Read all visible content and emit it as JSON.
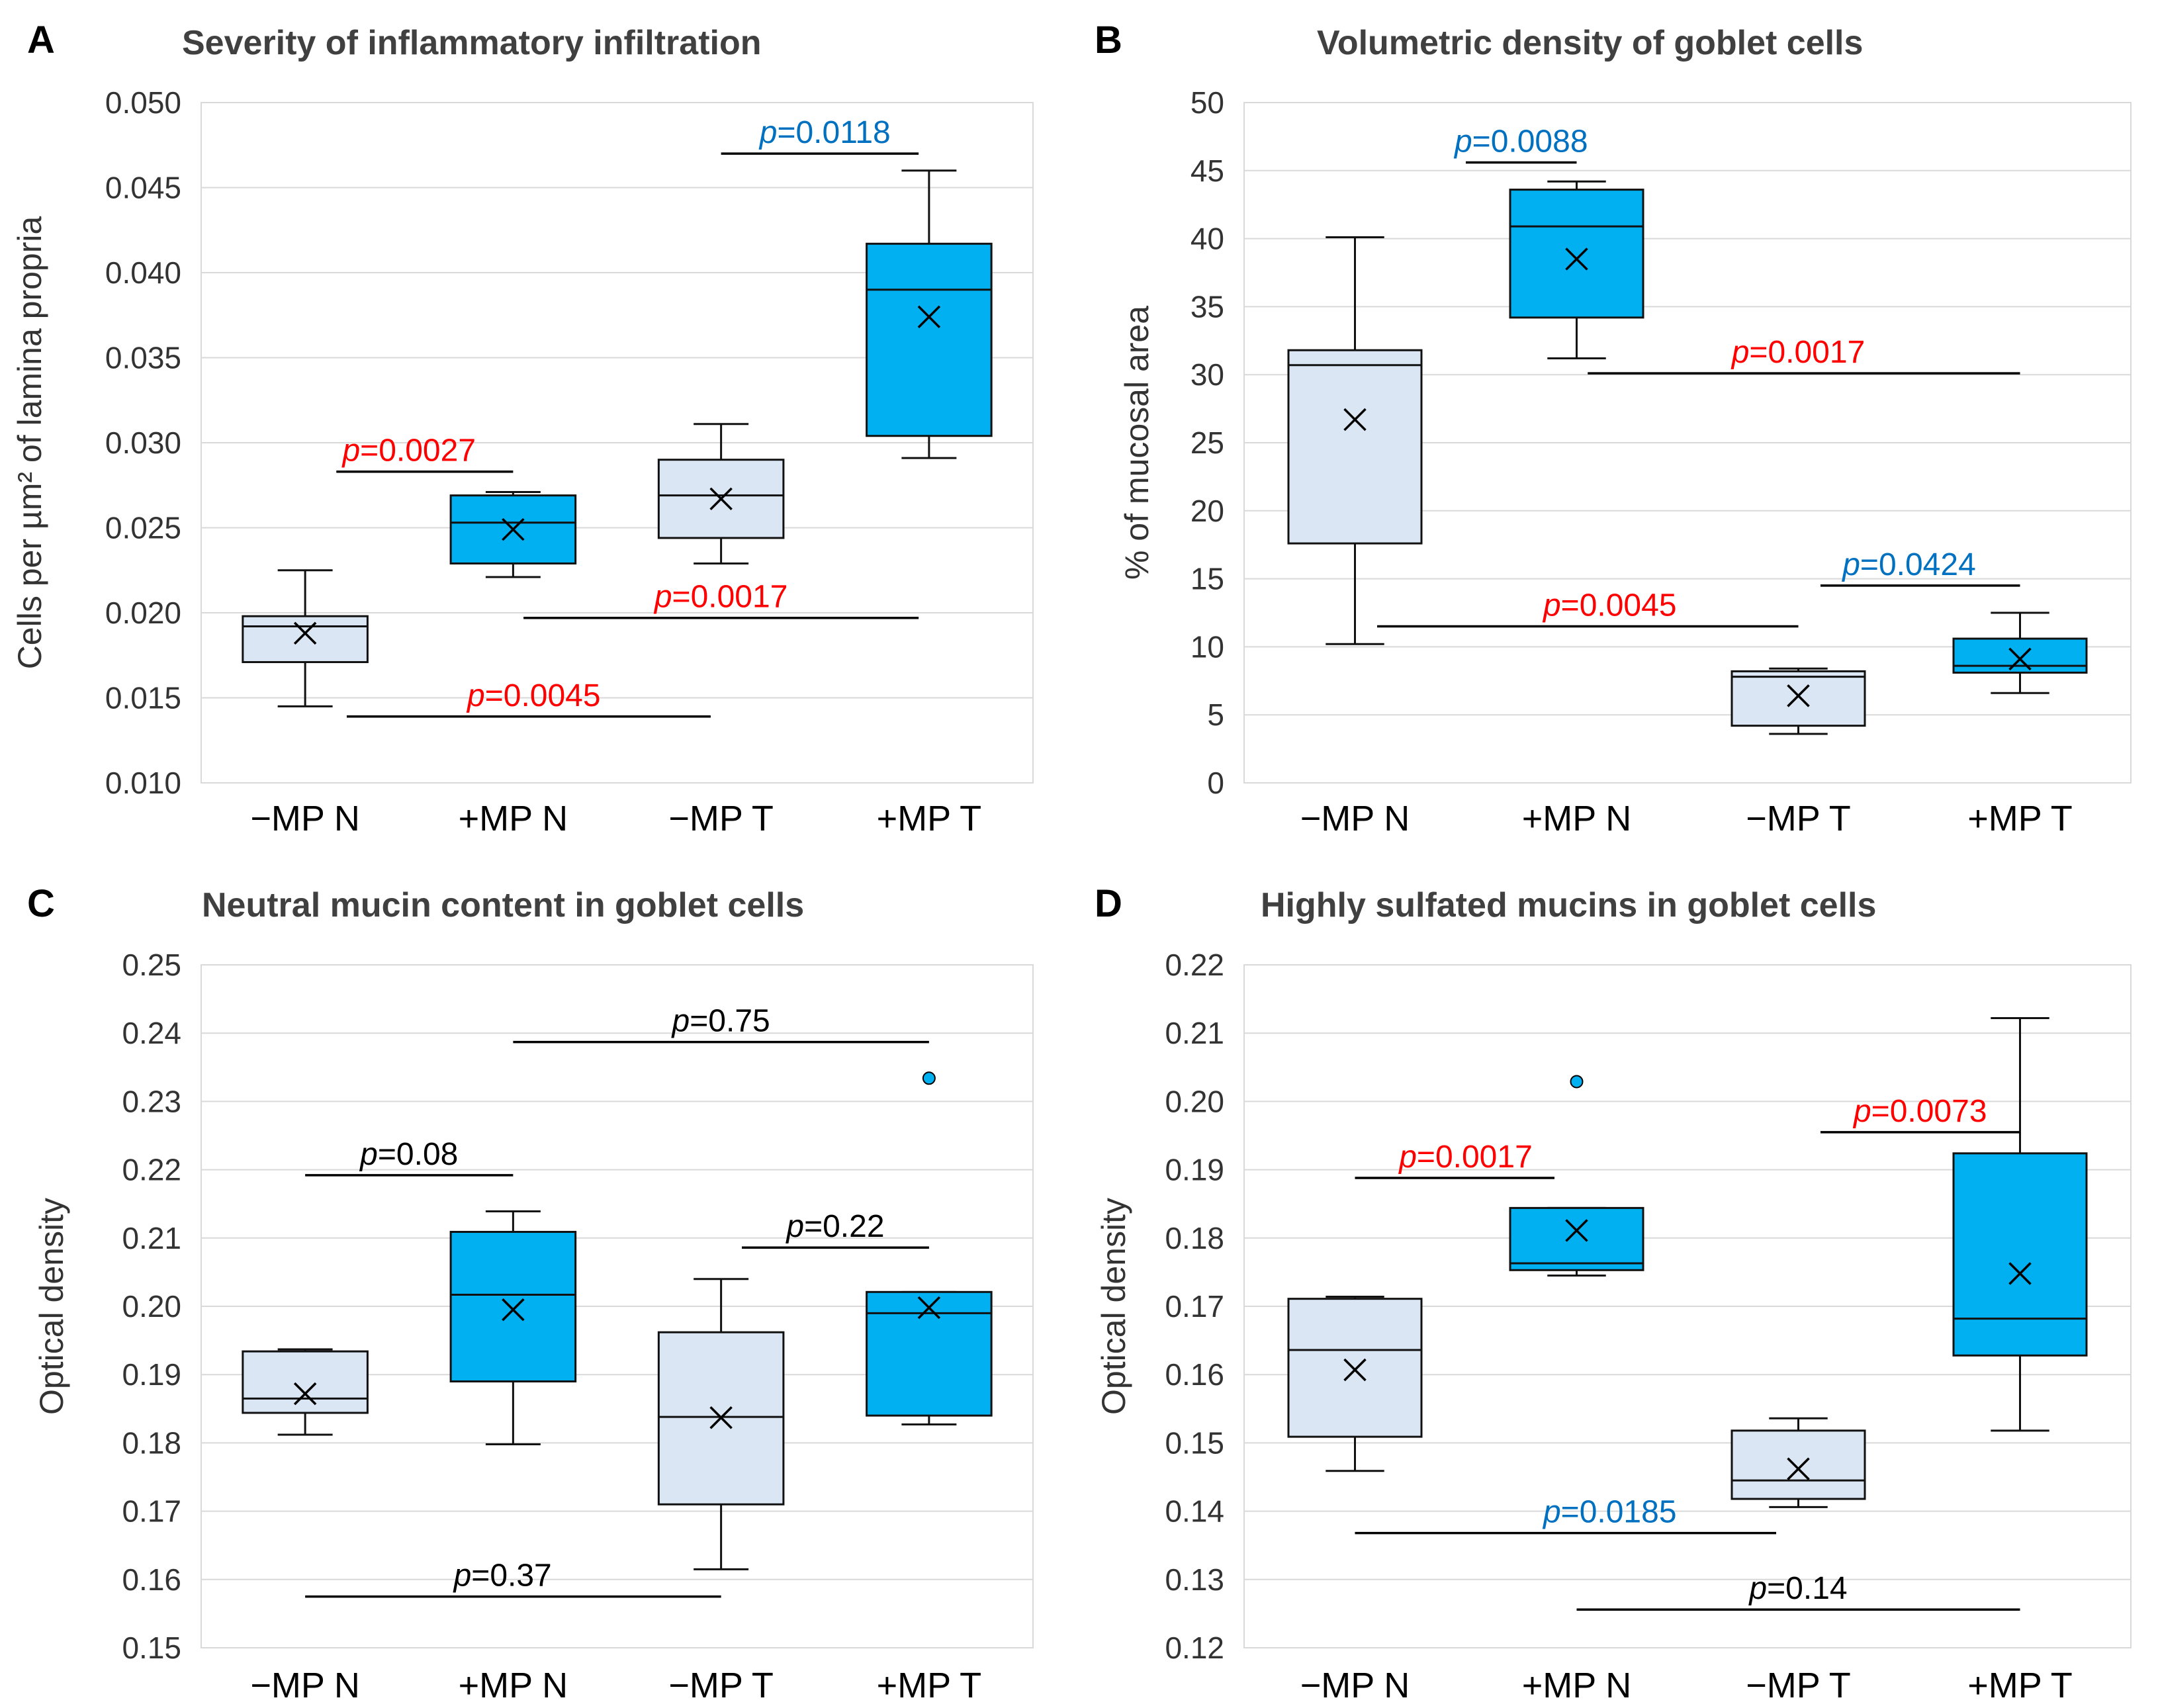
{
  "figure": {
    "panel_count": 4
  },
  "colors": {
    "neg_fill": "#dae6f4",
    "pos_fill": "#00b0f0",
    "box_stroke": "#111111",
    "grid": "#d9d9d9",
    "axis_text": "#333333",
    "title_text": "#404040",
    "sig_red": "#ff0000",
    "sig_blue": "#0070c0",
    "ns_black": "#000000"
  },
  "chart_data": [
    {
      "type": "box",
      "letter": "A",
      "title": "Severity of inflammatory infiltration",
      "ylabel": "Cells per µm² of lamina propria",
      "ylim": [
        0.01,
        0.05
      ],
      "ytick_step": 0.005,
      "ytick_labels": [
        "0.010",
        "0.015",
        "0.020",
        "0.025",
        "0.030",
        "0.035",
        "0.040",
        "0.045",
        "0.050"
      ],
      "categories": [
        "−MP N",
        "+MP N",
        "−MP T",
        "+MP T"
      ],
      "boxes": [
        {
          "whisker_low": 0.0145,
          "q1": 0.0171,
          "median": 0.0192,
          "q3": 0.0198,
          "whisker_high": 0.0225,
          "mean": 0.0188,
          "fill": "neg",
          "outliers": []
        },
        {
          "whisker_low": 0.0221,
          "q1": 0.0229,
          "median": 0.0253,
          "q3": 0.0269,
          "whisker_high": 0.0271,
          "mean": 0.0249,
          "fill": "pos",
          "outliers": []
        },
        {
          "whisker_low": 0.0229,
          "q1": 0.0244,
          "median": 0.0269,
          "q3": 0.029,
          "whisker_high": 0.0311,
          "mean": 0.0267,
          "fill": "neg",
          "outliers": []
        },
        {
          "whisker_low": 0.0291,
          "q1": 0.0304,
          "median": 0.039,
          "q3": 0.0417,
          "whisker_high": 0.046,
          "mean": 0.0374,
          "fill": "pos",
          "outliers": []
        }
      ],
      "annotations": [
        {
          "p_label": "p",
          "p_value": "=0.0027",
          "color": "red",
          "x1": 0.15,
          "x2": 1.0,
          "y": 0.0283,
          "label_x": 0.5
        },
        {
          "p_label": "p",
          "p_value": "=0.0118",
          "color": "blue",
          "x1": 2.0,
          "x2": 2.95,
          "y": 0.047,
          "label_x": 2.5
        },
        {
          "p_label": "p",
          "p_value": "=0.0017",
          "color": "red",
          "x1": 1.05,
          "x2": 2.95,
          "y": 0.0197,
          "label_x": 2.0
        },
        {
          "p_label": "p",
          "p_value": "=0.0045",
          "color": "red",
          "x1": 0.2,
          "x2": 1.95,
          "y": 0.0139,
          "label_x": 1.1
        }
      ]
    },
    {
      "type": "box",
      "letter": "B",
      "title": "Volumetric density of goblet cells",
      "ylabel": "% of mucosal area",
      "ylim": [
        0,
        50
      ],
      "ytick_step": 5,
      "ytick_labels": [
        "0",
        "5",
        "10",
        "15",
        "20",
        "25",
        "30",
        "35",
        "40",
        "45",
        "50"
      ],
      "categories": [
        "−MP N",
        "+MP N",
        "−MP T",
        "+MP T"
      ],
      "boxes": [
        {
          "whisker_low": 10.2,
          "q1": 17.6,
          "median": 30.7,
          "q3": 31.8,
          "whisker_high": 40.1,
          "mean": 26.7,
          "fill": "neg",
          "outliers": []
        },
        {
          "whisker_low": 31.2,
          "q1": 34.2,
          "median": 40.9,
          "q3": 43.6,
          "whisker_high": 44.2,
          "mean": 38.5,
          "fill": "pos",
          "outliers": []
        },
        {
          "whisker_low": 3.6,
          "q1": 4.2,
          "median": 7.8,
          "q3": 8.2,
          "whisker_high": 8.4,
          "mean": 6.4,
          "fill": "neg",
          "outliers": []
        },
        {
          "whisker_low": 6.6,
          "q1": 8.1,
          "median": 8.6,
          "q3": 10.6,
          "whisker_high": 12.5,
          "mean": 9.1,
          "fill": "pos",
          "outliers": []
        }
      ],
      "annotations": [
        {
          "p_label": "p",
          "p_value": "=0.0088",
          "color": "blue",
          "x1": 0.5,
          "x2": 1.0,
          "y": 45.6,
          "label_x": 0.75
        },
        {
          "p_label": "p",
          "p_value": "=0.0017",
          "color": "red",
          "x1": 1.05,
          "x2": 3.0,
          "y": 30.1,
          "label_x": 2.0
        },
        {
          "p_label": "p",
          "p_value": "=0.0045",
          "color": "red",
          "x1": 0.1,
          "x2": 2.0,
          "y": 11.5,
          "label_x": 1.15
        },
        {
          "p_label": "p",
          "p_value": "=0.0424",
          "color": "blue",
          "x1": 2.1,
          "x2": 3.0,
          "y": 14.5,
          "label_x": 2.5
        }
      ]
    },
    {
      "type": "box",
      "letter": "C",
      "title": "Neutral mucin content in goblet cells",
      "ylabel": "Optical density",
      "ylim": [
        0.15,
        0.25
      ],
      "ytick_step": 0.01,
      "ytick_labels": [
        "0.15",
        "0.16",
        "0.17",
        "0.18",
        "0.19",
        "0.20",
        "0.21",
        "0.22",
        "0.23",
        "0.24",
        "0.25"
      ],
      "categories": [
        "−MP N",
        "+MP N",
        "−MP T",
        "+MP T"
      ],
      "boxes": [
        {
          "whisker_low": 0.1812,
          "q1": 0.1844,
          "median": 0.1865,
          "q3": 0.1934,
          "whisker_high": 0.1937,
          "mean": 0.1872,
          "fill": "neg",
          "outliers": []
        },
        {
          "whisker_low": 0.1798,
          "q1": 0.189,
          "median": 0.2017,
          "q3": 0.2109,
          "whisker_high": 0.2139,
          "mean": 0.1995,
          "fill": "pos",
          "outliers": []
        },
        {
          "whisker_low": 0.1615,
          "q1": 0.171,
          "median": 0.1838,
          "q3": 0.1962,
          "whisker_high": 0.204,
          "mean": 0.1837,
          "fill": "neg",
          "outliers": []
        },
        {
          "whisker_low": 0.1827,
          "q1": 0.184,
          "median": 0.199,
          "q3": 0.2021,
          "whisker_high": 0.2021,
          "mean": 0.1998,
          "fill": "pos",
          "outliers": [
            0.2334
          ]
        }
      ],
      "annotations": [
        {
          "p_label": "p",
          "p_value": "=0.08",
          "color": "black",
          "x1": 0.0,
          "x2": 1.0,
          "y": 0.2192,
          "label_x": 0.5
        },
        {
          "p_label": "p",
          "p_value": "=0.75",
          "color": "black",
          "x1": 1.0,
          "x2": 3.0,
          "y": 0.2387,
          "label_x": 2.0
        },
        {
          "p_label": "p",
          "p_value": "=0.22",
          "color": "black",
          "x1": 2.1,
          "x2": 3.0,
          "y": 0.2086,
          "label_x": 2.55
        },
        {
          "p_label": "p",
          "p_value": "=0.37",
          "color": "black",
          "x1": 0.0,
          "x2": 2.0,
          "y": 0.1575,
          "label_x": 0.95
        }
      ]
    },
    {
      "type": "box",
      "letter": "D",
      "title": "Highly sulfated mucins in goblet cells",
      "ylabel": "Optical density",
      "ylim": [
        0.12,
        0.22
      ],
      "ytick_step": 0.01,
      "ytick_labels": [
        "0.12",
        "0.13",
        "0.14",
        "0.15",
        "0.16",
        "0.17",
        "0.18",
        "0.19",
        "0.20",
        "0.21",
        "0.22"
      ],
      "categories": [
        "−MP N",
        "+MP N",
        "−MP T",
        "+MP T"
      ],
      "boxes": [
        {
          "whisker_low": 0.1459,
          "q1": 0.1509,
          "median": 0.1636,
          "q3": 0.1711,
          "whisker_high": 0.1714,
          "mean": 0.1607,
          "fill": "neg",
          "outliers": []
        },
        {
          "whisker_low": 0.1745,
          "q1": 0.1753,
          "median": 0.1763,
          "q3": 0.1844,
          "whisker_high": 0.1844,
          "mean": 0.1811,
          "fill": "pos",
          "outliers": [
            0.2029
          ]
        },
        {
          "whisker_low": 0.1406,
          "q1": 0.1418,
          "median": 0.1445,
          "q3": 0.1518,
          "whisker_high": 0.1536,
          "mean": 0.1462,
          "fill": "neg",
          "outliers": []
        },
        {
          "whisker_low": 0.1518,
          "q1": 0.1628,
          "median": 0.1682,
          "q3": 0.1924,
          "whisker_high": 0.2122,
          "mean": 0.1748,
          "fill": "pos",
          "outliers": []
        }
      ],
      "annotations": [
        {
          "p_label": "p",
          "p_value": "=0.0017",
          "color": "red",
          "x1": 0.0,
          "x2": 0.9,
          "y": 0.1888,
          "label_x": 0.5
        },
        {
          "p_label": "p",
          "p_value": "=0.0073",
          "color": "red",
          "x1": 2.1,
          "x2": 3.0,
          "y": 0.1955,
          "label_x": 2.55
        },
        {
          "p_label": "p",
          "p_value": "=0.0185",
          "color": "blue",
          "x1": 0.0,
          "x2": 1.9,
          "y": 0.1368,
          "label_x": 1.15
        },
        {
          "p_label": "p",
          "p_value": "=0.14",
          "color": "black",
          "x1": 1.0,
          "x2": 3.0,
          "y": 0.1256,
          "label_x": 2.0
        }
      ]
    }
  ]
}
